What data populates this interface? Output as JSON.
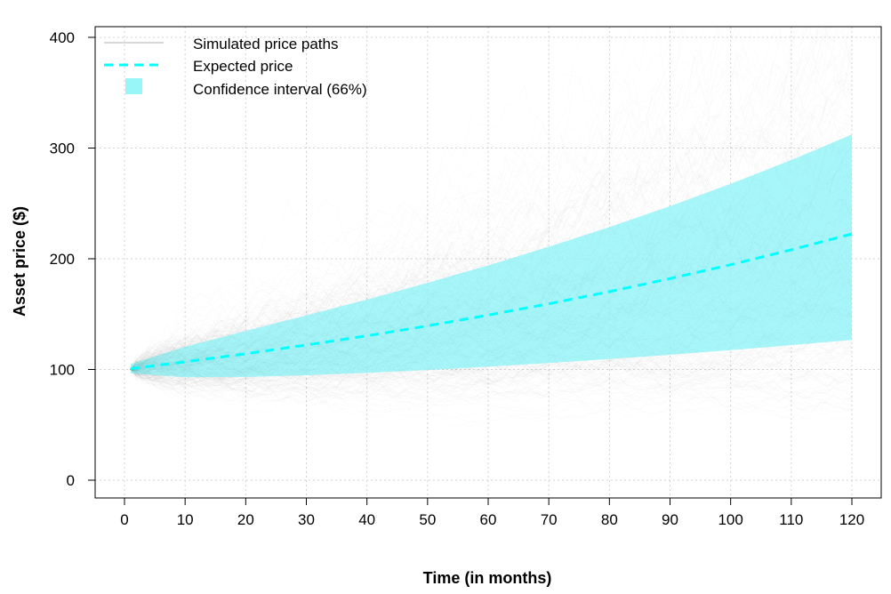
{
  "chart_data": {
    "type": "line",
    "title": "",
    "xlabel": "Time (in months)",
    "ylabel": "Asset price ($)",
    "xlim": [
      -5,
      125
    ],
    "ylim": [
      -15,
      415
    ],
    "x_ticks": [
      0,
      10,
      20,
      30,
      40,
      50,
      60,
      70,
      80,
      90,
      100,
      110,
      120
    ],
    "y_ticks": [
      0,
      100,
      200,
      300,
      400
    ],
    "grid": true,
    "legend_position": "top-left",
    "legend": [
      {
        "label": "Simulated price paths",
        "style": "line",
        "color": "#b0b0b0"
      },
      {
        "label": "Expected price",
        "style": "dashed",
        "color": "#00FFFF"
      },
      {
        "label": "Confidence interval (66%)",
        "style": "fill",
        "color": "#98F5F8"
      }
    ],
    "x": [
      1,
      10,
      20,
      30,
      40,
      50,
      60,
      70,
      80,
      90,
      100,
      110,
      120
    ],
    "series": [
      {
        "name": "Expected price",
        "values": [
          100.7,
          106.9,
          114.2,
          122.1,
          130.4,
          139.4,
          149.1,
          159.3,
          170.3,
          182.1,
          194.6,
          208.1,
          222.4
        ]
      }
    ],
    "confidence_interval": {
      "name": "Confidence interval (66%)",
      "upper": [
        104.8,
        120.6,
        134.8,
        148.8,
        163.2,
        178.2,
        194.0,
        210.8,
        228.6,
        247.5,
        267.7,
        289.2,
        312.2
      ],
      "lower": [
        96.5,
        93.0,
        93.3,
        94.8,
        96.9,
        99.5,
        102.5,
        105.8,
        109.4,
        113.3,
        117.5,
        122.0,
        126.7
      ]
    },
    "colors": {
      "paths": "#000000",
      "expected": "#00FFFF",
      "ci": "#98F5F8",
      "grid": "#d3d3d3"
    }
  }
}
